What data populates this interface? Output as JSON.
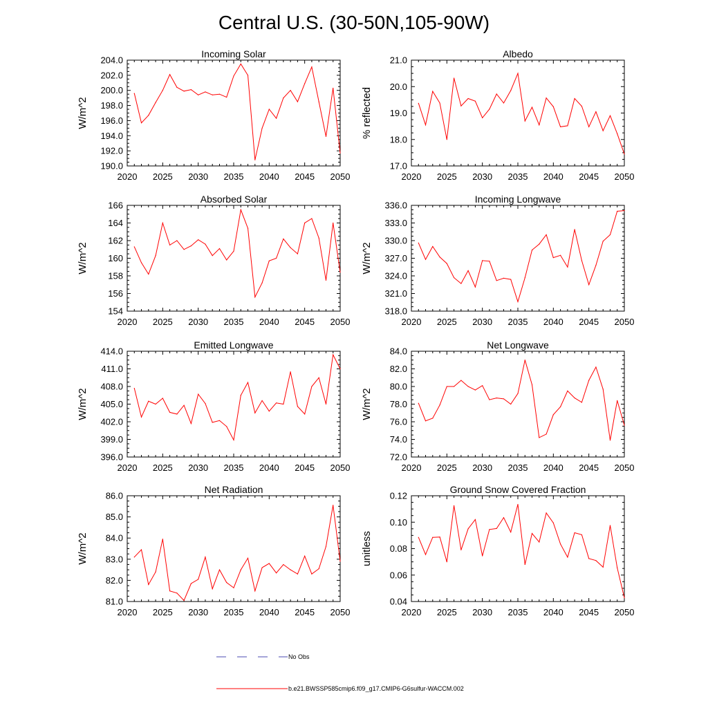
{
  "figure": {
    "title": "Central U.S. (30-50N,105-90W)"
  },
  "legend": {
    "entries": [
      {
        "label": "No Obs",
        "color": "#4a4ab0",
        "dash": "dashed"
      },
      {
        "label": "b.e21.BWSSP585cmip6.f09_g17.CMIP6-G6sulfur-WACCM.002",
        "color": "#ff0000",
        "dash": "solid"
      }
    ]
  },
  "chart_data": [
    {
      "type": "line",
      "title": "Incoming Solar",
      "xlabel": "",
      "ylabel": "W/m^2",
      "xlim": [
        2020,
        2050
      ],
      "ylim": [
        190,
        204
      ],
      "xticks": [
        2020,
        2025,
        2030,
        2035,
        2040,
        2045,
        2050
      ],
      "yticks": [
        "190.0",
        "192.0",
        "194.0",
        "196.0",
        "198.0",
        "200.0",
        "202.0",
        "204.0"
      ],
      "x": [
        2021,
        2022,
        2023,
        2024,
        2025,
        2026,
        2027,
        2028,
        2029,
        2030,
        2031,
        2032,
        2033,
        2034,
        2035,
        2036,
        2037,
        2038,
        2039,
        2040,
        2041,
        2042,
        2043,
        2044,
        2045,
        2046,
        2047,
        2048,
        2049,
        2050
      ],
      "series": [
        {
          "color": "#ff0000",
          "values": [
            199.6,
            195.7,
            196.7,
            198.4,
            200.0,
            202.1,
            200.4,
            199.9,
            200.1,
            199.4,
            199.8,
            199.4,
            199.5,
            199.1,
            201.9,
            203.5,
            202.0,
            190.8,
            195.0,
            197.5,
            196.3,
            199.0,
            200.0,
            198.5,
            200.9,
            203.1,
            198.5,
            193.9,
            200.3,
            191.7
          ]
        }
      ]
    },
    {
      "type": "line",
      "title": "Albedo",
      "xlabel": "",
      "ylabel": "% reflected",
      "xlim": [
        2020,
        2050
      ],
      "ylim": [
        17,
        21
      ],
      "xticks": [
        2020,
        2025,
        2030,
        2035,
        2040,
        2045,
        2050
      ],
      "yticks": [
        "17.0",
        "18.0",
        "19.0",
        "20.0",
        "21.0"
      ],
      "x": [
        2021,
        2022,
        2023,
        2024,
        2025,
        2026,
        2027,
        2028,
        2029,
        2030,
        2031,
        2032,
        2033,
        2034,
        2035,
        2036,
        2037,
        2038,
        2039,
        2040,
        2041,
        2042,
        2043,
        2044,
        2045,
        2046,
        2047,
        2048,
        2049,
        2050
      ],
      "series": [
        {
          "color": "#ff0000",
          "values": [
            19.37,
            18.55,
            19.82,
            19.38,
            18.0,
            20.32,
            19.27,
            19.55,
            19.45,
            18.82,
            19.15,
            19.72,
            19.38,
            19.85,
            20.5,
            18.7,
            19.22,
            18.55,
            19.57,
            19.24,
            18.48,
            18.52,
            19.55,
            19.26,
            18.48,
            19.05,
            18.33,
            18.9,
            18.22,
            17.45
          ]
        }
      ]
    },
    {
      "type": "line",
      "title": "Absorbed Solar",
      "xlabel": "",
      "ylabel": "W/m^2",
      "xlim": [
        2020,
        2050
      ],
      "ylim": [
        154,
        166
      ],
      "xticks": [
        2020,
        2025,
        2030,
        2035,
        2040,
        2045,
        2050
      ],
      "yticks": [
        "154",
        "156",
        "158",
        "160",
        "162",
        "164",
        "166"
      ],
      "x": [
        2021,
        2022,
        2023,
        2024,
        2025,
        2026,
        2027,
        2028,
        2029,
        2030,
        2031,
        2032,
        2033,
        2034,
        2035,
        2036,
        2037,
        2038,
        2039,
        2040,
        2041,
        2042,
        2043,
        2044,
        2045,
        2046,
        2047,
        2048,
        2049,
        2050
      ],
      "series": [
        {
          "color": "#ff0000",
          "values": [
            161.3,
            159.5,
            158.2,
            160.3,
            164.0,
            161.5,
            162.0,
            161.0,
            161.4,
            162.1,
            161.6,
            160.3,
            161.1,
            159.8,
            160.8,
            165.5,
            163.4,
            155.6,
            157.2,
            159.7,
            160.0,
            162.2,
            161.2,
            160.5,
            164.0,
            164.5,
            162.3,
            157.5,
            164.0,
            158.4
          ]
        }
      ]
    },
    {
      "type": "line",
      "title": "Incoming Longwave",
      "xlabel": "",
      "ylabel": "W/m^2",
      "xlim": [
        2020,
        2050
      ],
      "ylim": [
        318,
        336
      ],
      "xticks": [
        2020,
        2025,
        2030,
        2035,
        2040,
        2045,
        2050
      ],
      "yticks": [
        "318.0",
        "321.0",
        "324.0",
        "327.0",
        "330.0",
        "333.0",
        "336.0"
      ],
      "x": [
        2021,
        2022,
        2023,
        2024,
        2025,
        2026,
        2027,
        2028,
        2029,
        2030,
        2031,
        2032,
        2033,
        2034,
        2035,
        2036,
        2037,
        2038,
        2039,
        2040,
        2041,
        2042,
        2043,
        2044,
        2045,
        2046,
        2047,
        2048,
        2049,
        2050
      ],
      "series": [
        {
          "color": "#ff0000",
          "values": [
            329.6,
            326.8,
            329.0,
            327.2,
            326.1,
            323.7,
            322.7,
            324.9,
            322.1,
            326.6,
            326.5,
            323.2,
            323.6,
            323.4,
            319.6,
            323.7,
            328.4,
            329.4,
            331.0,
            327.1,
            327.5,
            325.5,
            331.9,
            326.6,
            322.5,
            325.8,
            329.9,
            331.0,
            335.0,
            335.1
          ]
        }
      ]
    },
    {
      "type": "line",
      "title": "Emitted Longwave",
      "xlabel": "",
      "ylabel": "W/m^2",
      "xlim": [
        2020,
        2050
      ],
      "ylim": [
        396,
        414
      ],
      "xticks": [
        2020,
        2025,
        2030,
        2035,
        2040,
        2045,
        2050
      ],
      "yticks": [
        "396.0",
        "399.0",
        "402.0",
        "405.0",
        "408.0",
        "411.0",
        "414.0"
      ],
      "x": [
        2021,
        2022,
        2023,
        2024,
        2025,
        2026,
        2027,
        2028,
        2029,
        2030,
        2031,
        2032,
        2033,
        2034,
        2035,
        2036,
        2037,
        2038,
        2039,
        2040,
        2041,
        2042,
        2043,
        2044,
        2045,
        2046,
        2047,
        2048,
        2049,
        2050
      ],
      "series": [
        {
          "color": "#ff0000",
          "values": [
            407.7,
            402.8,
            405.5,
            405.0,
            406.0,
            403.6,
            403.3,
            404.8,
            401.7,
            406.7,
            405.1,
            401.9,
            402.2,
            401.2,
            398.9,
            406.5,
            408.7,
            403.5,
            405.6,
            403.8,
            405.2,
            405.0,
            410.5,
            404.6,
            403.3,
            408.0,
            409.5,
            405.0,
            413.4,
            411.0
          ]
        }
      ]
    },
    {
      "type": "line",
      "title": "Net Longwave",
      "xlabel": "",
      "ylabel": "W/m^2",
      "xlim": [
        2020,
        2050
      ],
      "ylim": [
        72,
        84
      ],
      "xticks": [
        2020,
        2025,
        2030,
        2035,
        2040,
        2045,
        2050
      ],
      "yticks": [
        "72.0",
        "74.0",
        "76.0",
        "78.0",
        "80.0",
        "82.0",
        "84.0"
      ],
      "x": [
        2021,
        2022,
        2023,
        2024,
        2025,
        2026,
        2027,
        2028,
        2029,
        2030,
        2031,
        2032,
        2033,
        2034,
        2035,
        2036,
        2037,
        2038,
        2039,
        2040,
        2041,
        2042,
        2043,
        2044,
        2045,
        2046,
        2047,
        2048,
        2049,
        2050
      ],
      "series": [
        {
          "color": "#ff0000",
          "values": [
            78.1,
            76.1,
            76.4,
            77.9,
            80.0,
            80.0,
            80.7,
            80.0,
            79.6,
            80.1,
            78.5,
            78.7,
            78.6,
            78.0,
            79.2,
            83.0,
            80.2,
            74.2,
            74.6,
            76.8,
            77.7,
            79.5,
            78.7,
            78.2,
            80.7,
            82.2,
            79.7,
            73.9,
            78.4,
            75.6
          ]
        }
      ]
    },
    {
      "type": "line",
      "title": "Net Radiation",
      "xlabel": "",
      "ylabel": "W/m^2",
      "xlim": [
        2020,
        2050
      ],
      "ylim": [
        81,
        86
      ],
      "xticks": [
        2020,
        2025,
        2030,
        2035,
        2040,
        2045,
        2050
      ],
      "yticks": [
        "81.0",
        "82.0",
        "83.0",
        "84.0",
        "85.0",
        "86.0"
      ],
      "x": [
        2021,
        2022,
        2023,
        2024,
        2025,
        2026,
        2027,
        2028,
        2029,
        2030,
        2031,
        2032,
        2033,
        2034,
        2035,
        2036,
        2037,
        2038,
        2039,
        2040,
        2041,
        2042,
        2043,
        2044,
        2045,
        2046,
        2047,
        2048,
        2049,
        2050
      ],
      "series": [
        {
          "color": "#ff0000",
          "values": [
            83.1,
            83.45,
            81.8,
            82.4,
            83.95,
            81.5,
            81.4,
            81.05,
            81.85,
            82.05,
            83.1,
            81.6,
            82.5,
            81.9,
            81.65,
            82.5,
            83.05,
            81.5,
            82.6,
            82.8,
            82.35,
            82.75,
            82.5,
            82.3,
            83.15,
            82.3,
            82.55,
            83.6,
            85.55,
            82.9
          ]
        }
      ]
    },
    {
      "type": "line",
      "title": "Ground Snow Covered Fraction",
      "xlabel": "",
      "ylabel": "unitless",
      "xlim": [
        2020,
        2050
      ],
      "ylim": [
        0.04,
        0.12
      ],
      "xticks": [
        2020,
        2025,
        2030,
        2035,
        2040,
        2045,
        2050
      ],
      "yticks": [
        "0.04",
        "0.06",
        "0.08",
        "0.10",
        "0.12"
      ],
      "x": [
        2021,
        2022,
        2023,
        2024,
        2025,
        2026,
        2027,
        2028,
        2029,
        2030,
        2031,
        2032,
        2033,
        2034,
        2035,
        2036,
        2037,
        2038,
        2039,
        2040,
        2041,
        2042,
        2043,
        2044,
        2045,
        2046,
        2047,
        2048,
        2049,
        2050
      ],
      "series": [
        {
          "color": "#ff0000",
          "values": [
            0.0885,
            0.0755,
            0.0885,
            0.0888,
            0.07,
            0.1125,
            0.079,
            0.095,
            0.102,
            0.0745,
            0.0945,
            0.0952,
            0.1035,
            0.0925,
            0.1135,
            0.068,
            0.0915,
            0.085,
            0.107,
            0.0995,
            0.0835,
            0.0735,
            0.092,
            0.0905,
            0.0725,
            0.071,
            0.066,
            0.0975,
            0.0655,
            0.0428
          ]
        }
      ]
    }
  ]
}
